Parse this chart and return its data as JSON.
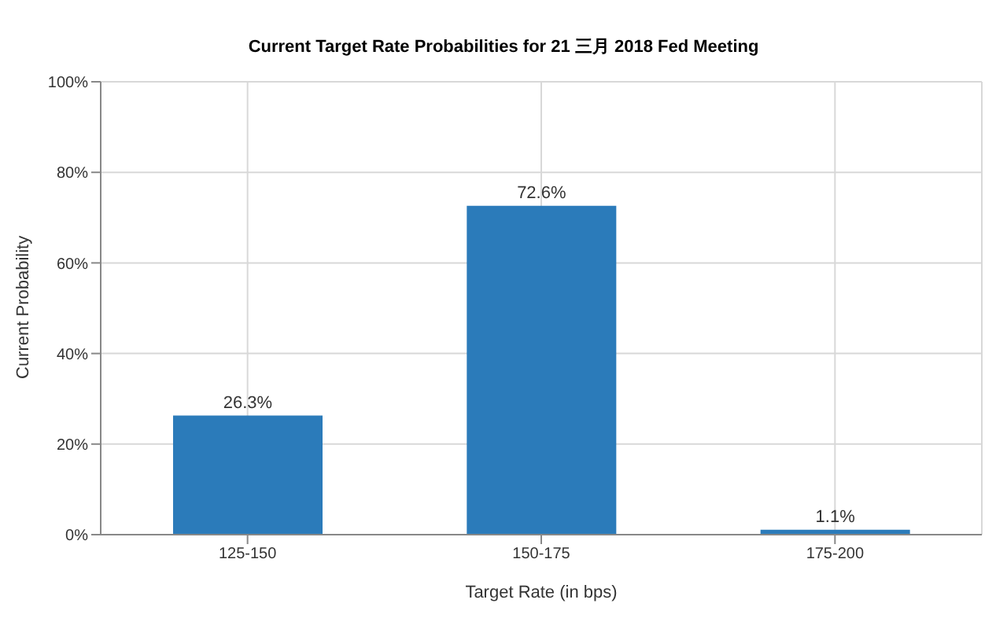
{
  "chart_data": {
    "type": "bar",
    "title": "Current Target Rate Probabilities for 21 三月 2018 Fed Meeting",
    "xlabel": "Target Rate (in bps)",
    "ylabel": "Current Probability",
    "categories": [
      "125-150",
      "150-175",
      "175-200"
    ],
    "series": [
      {
        "color": "#2b7bba",
        "values": [
          26.3,
          72.6,
          1.1
        ]
      }
    ],
    "value_labels": [
      "26.3%",
      "72.6%",
      "1.1%"
    ],
    "ylim": [
      0,
      100
    ],
    "yticks": [
      {
        "value": 0,
        "label": "0%"
      },
      {
        "value": 20,
        "label": "20%"
      },
      {
        "value": 40,
        "label": "40%"
      },
      {
        "value": 60,
        "label": "60%"
      },
      {
        "value": 80,
        "label": "80%"
      },
      {
        "value": 100,
        "label": "100%"
      }
    ],
    "grid": true,
    "legend": false
  }
}
